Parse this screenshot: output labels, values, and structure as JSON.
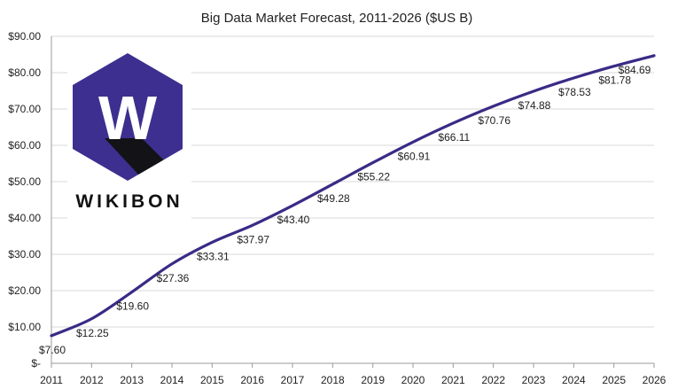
{
  "chart_data": {
    "type": "line",
    "title": "Big Data Market Forecast, 2011-2026 ($US B)",
    "categories": [
      "2011",
      "2012",
      "2013",
      "2014",
      "2015",
      "2016",
      "2017",
      "2018",
      "2019",
      "2020",
      "2021",
      "2022",
      "2023",
      "2024",
      "2025",
      "2026"
    ],
    "series": [
      {
        "values": [
          7.6,
          12.25,
          19.6,
          27.36,
          33.31,
          37.97,
          43.4,
          49.28,
          55.22,
          60.91,
          66.11,
          70.76,
          74.88,
          78.53,
          81.78,
          84.69
        ]
      }
    ],
    "data_labels": [
      "$7.60",
      "$12.25",
      "$19.60",
      "$27.36",
      "$33.31",
      "$37.97",
      "$43.40",
      "$49.28",
      "$55.22",
      "$60.91",
      "$66.11",
      "$70.76",
      "$74.88",
      "$78.53",
      "$81.78",
      "$84.69"
    ],
    "ylim": [
      0,
      90
    ],
    "y_ticks": [
      0,
      10,
      20,
      30,
      40,
      50,
      60,
      70,
      80,
      90
    ],
    "y_tick_labels": [
      "$-",
      "$10.00",
      "$20.00",
      "$30.00",
      "$40.00",
      "$50.00",
      "$60.00",
      "$70.00",
      "$80.00",
      "$90.00"
    ],
    "grid": true,
    "line_color": "#3b2a86",
    "grid_color": "#d8d8d8"
  },
  "logo": {
    "text": "WIKIBON",
    "letter": "W",
    "hex_color": "#3d2f8f",
    "shadow_color": "#111111"
  }
}
